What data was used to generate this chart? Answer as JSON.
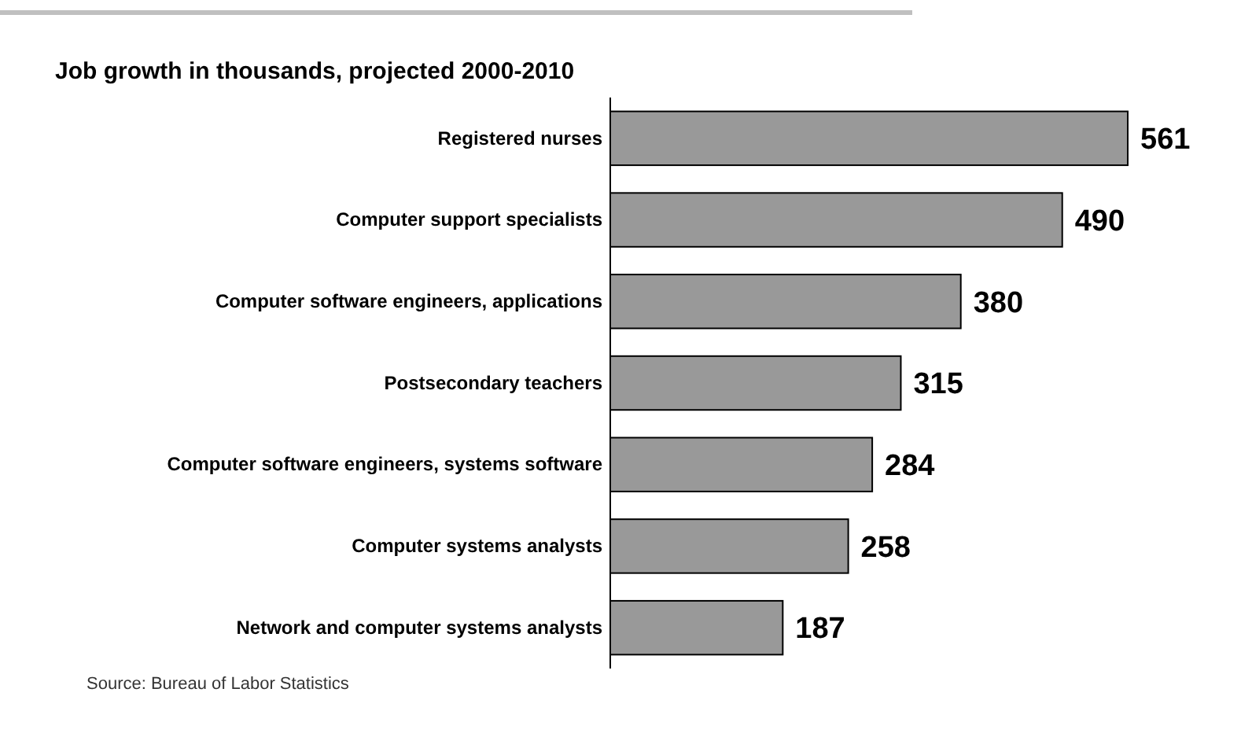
{
  "chart_data": {
    "type": "bar",
    "orientation": "horizontal",
    "title": "Job growth in thousands, projected 2000-2010",
    "categories": [
      "Registered nurses",
      "Computer support specialists",
      "Computer software engineers, applications",
      "Postsecondary teachers",
      "Computer software engineers, systems software",
      "Computer systems analysts",
      "Network and computer systems analysts"
    ],
    "values": [
      561,
      490,
      380,
      315,
      284,
      258,
      187
    ],
    "color": "#999999",
    "xlim": [
      0,
      561
    ],
    "data_labels": true,
    "annotations": [
      "Source: Bureau of Labor Statistics"
    ]
  }
}
